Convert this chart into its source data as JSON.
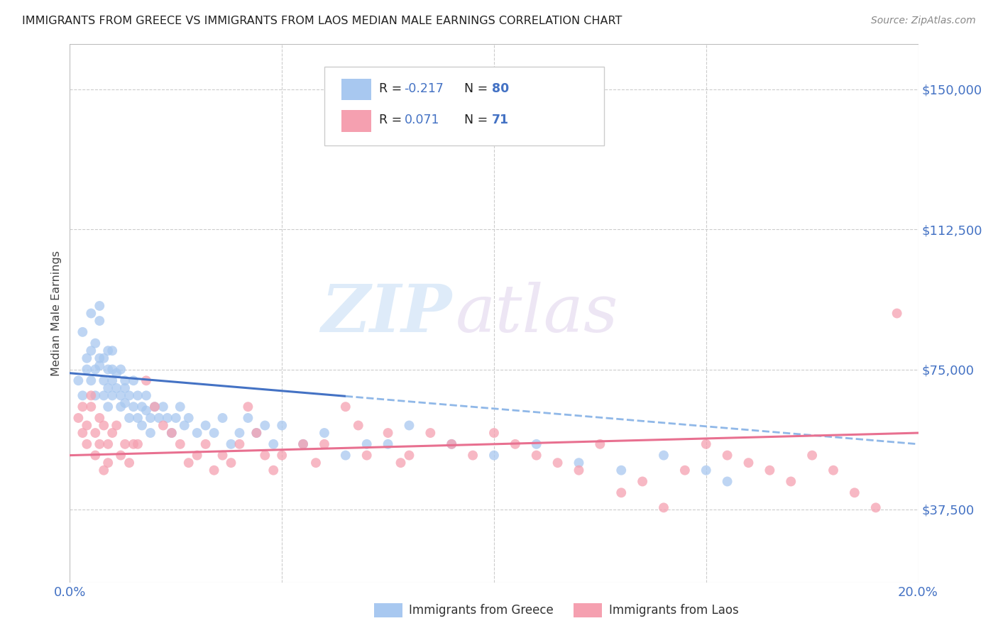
{
  "title": "IMMIGRANTS FROM GREECE VS IMMIGRANTS FROM LAOS MEDIAN MALE EARNINGS CORRELATION CHART",
  "source": "Source: ZipAtlas.com",
  "ylabel": "Median Male Earnings",
  "ytick_labels": [
    "$37,500",
    "$75,000",
    "$112,500",
    "$150,000"
  ],
  "ytick_values": [
    37500,
    75000,
    112500,
    150000
  ],
  "ymin": 18000,
  "ymax": 162000,
  "xmin": 0.0,
  "xmax": 0.2,
  "R_greece": -0.217,
  "N_greece": 80,
  "R_laos": 0.071,
  "N_laos": 71,
  "color_greece": "#a8c8f0",
  "color_laos": "#f5a0b0",
  "line_color_greece": "#4472c4",
  "line_color_laos": "#e87090",
  "line_color_greece_dash": "#90b8e8",
  "watermark_zip": "ZIP",
  "watermark_atlas": "atlas",
  "legend_label_greece": "Immigrants from Greece",
  "legend_label_laos": "Immigrants from Laos",
  "greece_x": [
    0.002,
    0.003,
    0.003,
    0.004,
    0.004,
    0.005,
    0.005,
    0.005,
    0.006,
    0.006,
    0.006,
    0.007,
    0.007,
    0.007,
    0.007,
    0.008,
    0.008,
    0.008,
    0.009,
    0.009,
    0.009,
    0.009,
    0.01,
    0.01,
    0.01,
    0.01,
    0.011,
    0.011,
    0.012,
    0.012,
    0.012,
    0.013,
    0.013,
    0.013,
    0.014,
    0.014,
    0.015,
    0.015,
    0.016,
    0.016,
    0.017,
    0.017,
    0.018,
    0.018,
    0.019,
    0.019,
    0.02,
    0.021,
    0.022,
    0.023,
    0.024,
    0.025,
    0.026,
    0.027,
    0.028,
    0.03,
    0.032,
    0.034,
    0.036,
    0.038,
    0.04,
    0.042,
    0.044,
    0.046,
    0.048,
    0.05,
    0.055,
    0.06,
    0.065,
    0.07,
    0.075,
    0.08,
    0.09,
    0.1,
    0.11,
    0.12,
    0.13,
    0.14,
    0.15,
    0.155
  ],
  "greece_y": [
    72000,
    68000,
    85000,
    75000,
    78000,
    72000,
    80000,
    90000,
    75000,
    82000,
    68000,
    78000,
    88000,
    92000,
    76000,
    72000,
    78000,
    68000,
    80000,
    75000,
    70000,
    65000,
    80000,
    75000,
    72000,
    68000,
    74000,
    70000,
    75000,
    68000,
    65000,
    72000,
    70000,
    66000,
    68000,
    62000,
    72000,
    65000,
    68000,
    62000,
    65000,
    60000,
    68000,
    64000,
    62000,
    58000,
    65000,
    62000,
    65000,
    62000,
    58000,
    62000,
    65000,
    60000,
    62000,
    58000,
    60000,
    58000,
    62000,
    55000,
    58000,
    62000,
    58000,
    60000,
    55000,
    60000,
    55000,
    58000,
    52000,
    55000,
    55000,
    60000,
    55000,
    52000,
    55000,
    50000,
    48000,
    52000,
    48000,
    45000
  ],
  "laos_x": [
    0.002,
    0.003,
    0.003,
    0.004,
    0.004,
    0.005,
    0.005,
    0.006,
    0.006,
    0.007,
    0.007,
    0.008,
    0.008,
    0.009,
    0.009,
    0.01,
    0.011,
    0.012,
    0.013,
    0.014,
    0.015,
    0.016,
    0.018,
    0.02,
    0.022,
    0.024,
    0.026,
    0.028,
    0.03,
    0.032,
    0.034,
    0.036,
    0.038,
    0.04,
    0.042,
    0.044,
    0.046,
    0.048,
    0.05,
    0.055,
    0.058,
    0.06,
    0.065,
    0.068,
    0.07,
    0.075,
    0.078,
    0.08,
    0.085,
    0.09,
    0.095,
    0.1,
    0.105,
    0.11,
    0.115,
    0.12,
    0.125,
    0.13,
    0.135,
    0.14,
    0.145,
    0.15,
    0.155,
    0.16,
    0.165,
    0.17,
    0.175,
    0.18,
    0.185,
    0.19,
    0.195
  ],
  "laos_y": [
    62000,
    58000,
    65000,
    55000,
    60000,
    68000,
    65000,
    58000,
    52000,
    62000,
    55000,
    60000,
    48000,
    55000,
    50000,
    58000,
    60000,
    52000,
    55000,
    50000,
    55000,
    55000,
    72000,
    65000,
    60000,
    58000,
    55000,
    50000,
    52000,
    55000,
    48000,
    52000,
    50000,
    55000,
    65000,
    58000,
    52000,
    48000,
    52000,
    55000,
    50000,
    55000,
    65000,
    60000,
    52000,
    58000,
    50000,
    52000,
    58000,
    55000,
    52000,
    58000,
    55000,
    52000,
    50000,
    48000,
    55000,
    42000,
    45000,
    38000,
    48000,
    55000,
    52000,
    50000,
    48000,
    45000,
    52000,
    48000,
    42000,
    38000,
    90000
  ]
}
